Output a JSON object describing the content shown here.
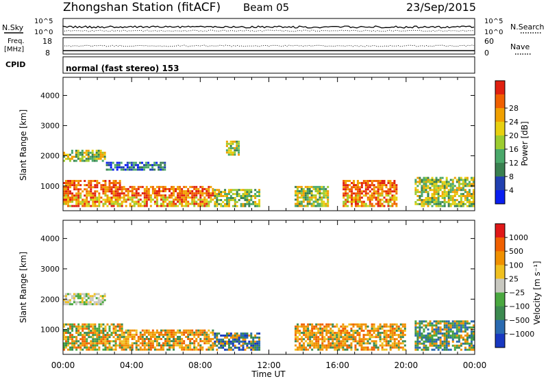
{
  "header": {
    "station": "Zhongshan Station (fitACF)",
    "beam": "Beam 05",
    "date": "23/Sep/2015"
  },
  "panels": {
    "nsky_label": "N.Sky",
    "nsearch_label": "N.Search",
    "scale_top": "10^5",
    "scale_bottom": "10^0",
    "freq_label_1": "Freq.",
    "freq_label_2": "[MHz]",
    "freq_ticks": [
      "18",
      "8"
    ],
    "nave_label": "Nave",
    "nave_ticks": [
      "60",
      "0"
    ],
    "cpid_label": "CPID",
    "cpid_value": "normal (fast stereo) 153"
  },
  "chart_data": [
    {
      "type": "heatmap",
      "title": "Power",
      "ylabel": "Slant Range [km]",
      "xlabel": "",
      "x_ticks": [
        "00:00",
        "04:00",
        "08:00",
        "12:00",
        "16:00",
        "20:00",
        "00:00"
      ],
      "y_ticks": [
        1000,
        2000,
        3000,
        4000
      ],
      "ylim": [
        180,
        4600
      ],
      "colorbar": {
        "label": "Power [dB]",
        "ticks": [
          4,
          8,
          12,
          16,
          20,
          24,
          28
        ],
        "colors": [
          "#0a1ff0",
          "#2140b0",
          "#3a8050",
          "#4aa86a",
          "#9ccc30",
          "#e8d010",
          "#f0a000",
          "#f06000",
          "#e02010"
        ]
      },
      "regions": [
        {
          "t0": 0.0,
          "t1": 3.5,
          "r0": 300,
          "r1": 1200,
          "level": "high"
        },
        {
          "t0": 3.5,
          "t1": 8.8,
          "r0": 300,
          "r1": 1000,
          "level": "high"
        },
        {
          "t0": 0.0,
          "t1": 2.5,
          "r0": 1800,
          "r1": 2200,
          "level": "mid"
        },
        {
          "t0": 2.5,
          "t1": 6.0,
          "r0": 1500,
          "r1": 1800,
          "level": "low"
        },
        {
          "t0": 8.8,
          "t1": 11.5,
          "r0": 300,
          "r1": 900,
          "level": "mid"
        },
        {
          "t0": 9.5,
          "t1": 10.3,
          "r0": 2000,
          "r1": 2500,
          "level": "mid"
        },
        {
          "t0": 13.5,
          "t1": 15.5,
          "r0": 300,
          "r1": 1000,
          "level": "mid"
        },
        {
          "t0": 16.3,
          "t1": 19.5,
          "r0": 300,
          "r1": 1200,
          "level": "high"
        },
        {
          "t0": 20.5,
          "t1": 24.0,
          "r0": 300,
          "r1": 1300,
          "level": "mid"
        }
      ]
    },
    {
      "type": "heatmap",
      "title": "Velocity",
      "ylabel": "Slant Range [km]",
      "xlabel": "Time UT",
      "x_ticks": [
        "00:00",
        "04:00",
        "08:00",
        "12:00",
        "16:00",
        "20:00",
        "00:00"
      ],
      "y_ticks": [
        1000,
        2000,
        3000,
        4000
      ],
      "ylim": [
        180,
        4600
      ],
      "colorbar": {
        "label": "Velocity [m s⁻¹]",
        "ticks": [
          "1000",
          "500",
          "100",
          "25",
          "−25",
          "−100",
          "−500",
          "−1000"
        ],
        "colors": [
          "#1838c0",
          "#2a6ab0",
          "#3c8a50",
          "#4aa840",
          "#c8c8c0",
          "#f0c020",
          "#f09000",
          "#f06000",
          "#e01818"
        ]
      },
      "regions": [
        {
          "t0": 0.0,
          "t1": 3.5,
          "r0": 300,
          "r1": 1200,
          "level": "mixed"
        },
        {
          "t0": 0.0,
          "t1": 2.5,
          "r0": 1800,
          "r1": 2200,
          "level": "grey"
        },
        {
          "t0": 3.5,
          "t1": 8.8,
          "r0": 300,
          "r1": 1000,
          "level": "orange"
        },
        {
          "t0": 8.8,
          "t1": 11.5,
          "r0": 300,
          "r1": 900,
          "level": "blue"
        },
        {
          "t0": 13.5,
          "t1": 20.0,
          "r0": 300,
          "r1": 1200,
          "level": "orange"
        },
        {
          "t0": 20.5,
          "t1": 24.0,
          "r0": 300,
          "r1": 1300,
          "level": "green"
        }
      ]
    }
  ]
}
